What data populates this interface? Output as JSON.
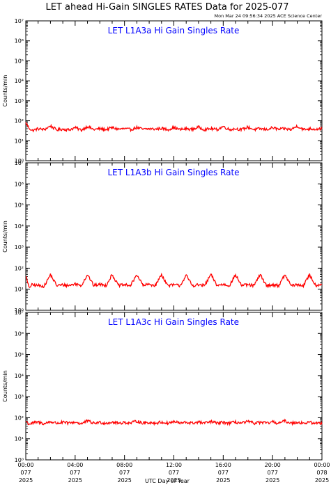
{
  "figure": {
    "title": "LET ahead Hi-Gain SINGLES RATES Data for 2025-077",
    "timestamp": "Mon Mar 24 09:56:34 2025 ACE Science Center",
    "xlabel": "UTC Day of Year",
    "ylabel": "Counts/min"
  },
  "colors": {
    "series": "#ff0000",
    "panel_title": "#0000ff",
    "axes": "#000000",
    "background": "#ffffff"
  },
  "chart_data": [
    {
      "type": "line",
      "title": "LET L1A3a Hi Gain Singles Rate",
      "ylabel": "Counts/min",
      "yscale": "log",
      "ylim": [
        1,
        10000000
      ],
      "ytick_labels": [
        "10⁰",
        "10¹",
        "10²",
        "10³",
        "10⁴",
        "10⁵",
        "10⁶",
        "10⁷"
      ],
      "xlim": [
        0,
        24
      ],
      "series": [
        {
          "x_hours": [
            0,
            0.25,
            0.5,
            1,
            1.5,
            2,
            2.5,
            3,
            3.5,
            4,
            4.5,
            5,
            5.5,
            6,
            6.5,
            7,
            7.5,
            8,
            8.5,
            9,
            9.5,
            10,
            10.5,
            11,
            11.5,
            12,
            12.5,
            13,
            13.5,
            14,
            14.5,
            15,
            15.5,
            16,
            16.5,
            17,
            17.5,
            18,
            18.5,
            19,
            19.5,
            20,
            20.5,
            21,
            21.5,
            22,
            22.5,
            23,
            23.5,
            24
          ],
          "values": [
            80,
            45,
            32,
            40,
            36,
            55,
            35,
            38,
            35,
            45,
            34,
            52,
            36,
            40,
            36,
            45,
            38,
            40,
            36,
            46,
            37,
            40,
            38,
            42,
            36,
            45,
            36,
            40,
            37,
            48,
            36,
            40,
            36,
            52,
            36,
            40,
            36,
            48,
            36,
            40,
            36,
            45,
            37,
            40,
            36,
            55,
            36,
            40,
            38,
            40
          ]
        }
      ]
    },
    {
      "type": "line",
      "title": "LET L1A3b Hi Gain Singles Rate",
      "ylabel": "Counts/min",
      "yscale": "log",
      "ylim": [
        1,
        10000000
      ],
      "ytick_labels": [
        "10⁰",
        "10¹",
        "10²",
        "10³",
        "10⁴",
        "10⁵",
        "10⁶",
        "10⁷"
      ],
      "xlim": [
        0,
        24
      ],
      "series": [
        {
          "x_hours": [
            0,
            0.25,
            0.5,
            1,
            1.5,
            2,
            2.5,
            3,
            3.5,
            4,
            4.5,
            5,
            5.5,
            6,
            6.5,
            7,
            7.5,
            8,
            8.5,
            9,
            9.5,
            10,
            10.5,
            11,
            11.5,
            12,
            12.5,
            13,
            13.5,
            14,
            14.5,
            15,
            15.5,
            16,
            16.5,
            17,
            17.5,
            18,
            18.5,
            19,
            19.5,
            20,
            20.5,
            21,
            21.5,
            22,
            22.5,
            23,
            23.5,
            24
          ],
          "values": [
            45,
            12,
            16,
            15,
            14,
            50,
            15,
            16,
            15,
            18,
            15,
            50,
            15,
            17,
            15,
            50,
            15,
            16,
            15,
            50,
            15,
            17,
            15,
            50,
            15,
            16,
            15,
            45,
            15,
            16,
            15,
            50,
            15,
            17,
            15,
            48,
            15,
            16,
            15,
            50,
            15,
            16,
            15,
            48,
            15,
            16,
            15,
            48,
            15,
            18
          ]
        }
      ]
    },
    {
      "type": "line",
      "title": "LET L1A3c Hi Gain Singles Rate",
      "ylabel": "Counts/min",
      "yscale": "log",
      "ylim": [
        1,
        10000000
      ],
      "ytick_labels": [
        "10⁰",
        "10¹",
        "10²",
        "10³",
        "10⁴",
        "10⁵",
        "10⁶",
        "10⁷"
      ],
      "xlim": [
        0,
        24
      ],
      "xtick_labels": [
        [
          "00:00",
          "077",
          "2025"
        ],
        [
          "04:00",
          "077",
          "2025"
        ],
        [
          "08:00",
          "077",
          "2025"
        ],
        [
          "12:00",
          "077",
          "2025"
        ],
        [
          "16:00",
          "077",
          "2025"
        ],
        [
          "20:00",
          "077",
          "2025"
        ],
        [
          "00:00",
          "078",
          "2025"
        ]
      ],
      "series": [
        {
          "x_hours": [
            0,
            0.25,
            0.5,
            1,
            1.5,
            2,
            2.5,
            3,
            3.5,
            4,
            4.5,
            5,
            5.5,
            6,
            6.5,
            7,
            7.5,
            8,
            8.5,
            9,
            9.5,
            10,
            10.5,
            11,
            11.5,
            12,
            12.5,
            13,
            13.5,
            14,
            14.5,
            15,
            15.5,
            16,
            16.5,
            17,
            17.5,
            18,
            18.5,
            19,
            19.5,
            20,
            20.5,
            21,
            21.5,
            22,
            22.5,
            23,
            23.5,
            24
          ],
          "values": [
            70,
            50,
            55,
            62,
            52,
            65,
            55,
            60,
            55,
            62,
            52,
            70,
            55,
            60,
            55,
            62,
            55,
            60,
            55,
            70,
            55,
            60,
            55,
            62,
            55,
            65,
            55,
            60,
            55,
            62,
            55,
            65,
            55,
            60,
            55,
            62,
            55,
            65,
            55,
            60,
            55,
            62,
            55,
            70,
            55,
            62,
            55,
            60,
            55,
            55
          ]
        }
      ]
    }
  ]
}
